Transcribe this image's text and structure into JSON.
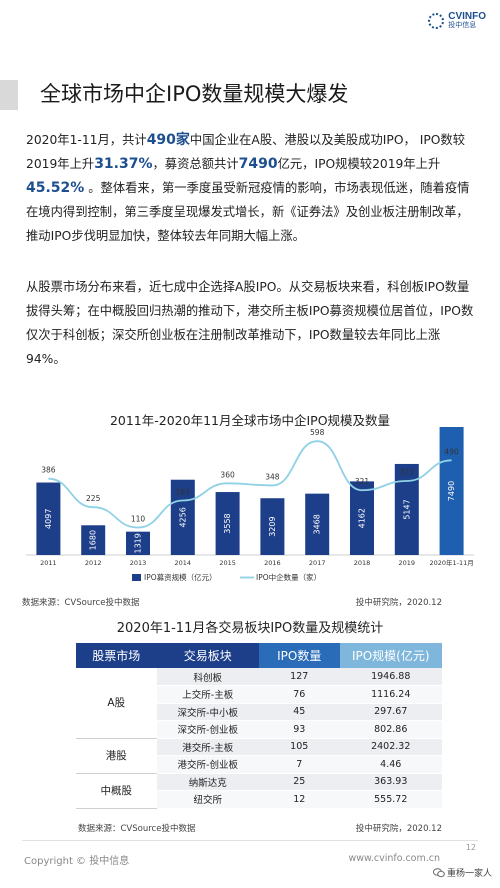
{
  "logo": {
    "en": "CVINFO",
    "cn": "投中信息"
  },
  "title": "全球市场中企IPO数量规模大爆发",
  "para1": {
    "t1": "2020年1-11月，共计",
    "h1": "490家",
    "t2": "中国企业在A股、港股以及美股成功IPO， IPO数较2019年上升",
    "h2": "31.37%",
    "t3": "，募资总额共计",
    "h3": "7490",
    "t4": "亿元，IPO规模较2019年上升",
    "h4": "45.52%",
    "t5": " 。整体看来，第一季度虽受新冠疫情的影响，市场表现低迷，随着疫情在境内得到控制，第三季度呈现爆发式增长，新《证券法》及创业板注册制改革，推动IPO步伐明显加快，整体较去年同期大幅上涨。"
  },
  "para2": "从股票市场分布来看，近七成中企选择A股IPO。从交易板块来看，科创板IPO数量拔得头筹；在中概股回归热潮的推动下，港交所主板IPO募资规模位居首位，IPO数仅次于科创板；深交所创业板在注册制改革推动下，IPO数量较去年同比上涨94%。",
  "chart_data": {
    "type": "bar",
    "title": "2011年-2020年11月全球市场中企IPO规模及数量",
    "categories": [
      "2011",
      "2012",
      "2013",
      "2014",
      "2015",
      "2016",
      "2017",
      "2018",
      "2019",
      "2020年1-11月"
    ],
    "series": [
      {
        "name": "IPO募资规模（亿元）",
        "kind": "bar",
        "values": [
          4097,
          1680,
          1319,
          4256,
          3558,
          3209,
          3468,
          4162,
          5147,
          7490
        ]
      },
      {
        "name": "IPO中企数量（家）",
        "kind": "line",
        "values": [
          386,
          225,
          110,
          263,
          360,
          348,
          598,
          321,
          373,
          490
        ]
      }
    ],
    "y_bar_max": 8000,
    "y_line_max": 650,
    "colors": {
      "bar": "#1d3f8a",
      "bar_last": "#1f5fb0",
      "line": "#8fd1e6"
    },
    "legend_position": "bottom",
    "grid": false
  },
  "chart_source_left": "数据来源：CVSource投中数据",
  "chart_source_right": "投中研究院，2020.12",
  "table": {
    "title": "2020年1-11月各交易板块IPO数量及规模统计",
    "headers": [
      "股票市场",
      "交易板块",
      "IPO数量",
      "IPO规模(亿元)"
    ],
    "header_colors": [
      "#1d3f8a",
      "#1d3f8a",
      "#2a6cb8",
      "#7fb7dc"
    ],
    "groups": [
      {
        "market": "A股",
        "rows": [
          {
            "board": "科创板",
            "count": "127",
            "scale": "1946.88"
          },
          {
            "board": "上交所-主板",
            "count": "76",
            "scale": "1116.24"
          },
          {
            "board": "深交所-中小板",
            "count": "45",
            "scale": "297.67"
          },
          {
            "board": "深交所-创业板",
            "count": "93",
            "scale": "802.86"
          }
        ]
      },
      {
        "market": "港股",
        "rows": [
          {
            "board": "港交所-主板",
            "count": "105",
            "scale": "2402.32"
          },
          {
            "board": "港交所-创业板",
            "count": "7",
            "scale": "4.46"
          }
        ]
      },
      {
        "market": "中概股",
        "rows": [
          {
            "board": "纳斯达克",
            "count": "25",
            "scale": "363.93"
          },
          {
            "board": "纽交所",
            "count": "12",
            "scale": "555.72"
          }
        ]
      }
    ]
  },
  "table_source_left": "数据来源：CVSource投中数据",
  "table_source_right": "投中研究院，2020.12",
  "footer": {
    "copyright": "Copyright © 投中信息",
    "website": "www.cvinfo.com.cn",
    "page": "12",
    "wechat": "重杨一家人"
  }
}
